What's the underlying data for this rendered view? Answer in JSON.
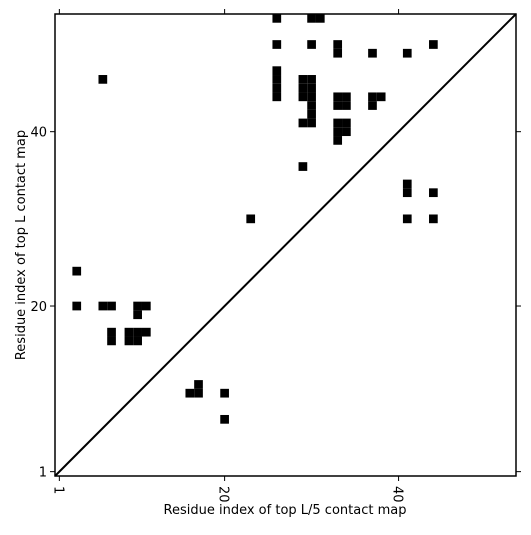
{
  "chart_data": {
    "type": "scatter",
    "xlabel": "Residue index of top L/5 contact map",
    "ylabel": "Residue index of top L contact map",
    "x": [
      3,
      3,
      6,
      7,
      7,
      7,
      9,
      10,
      11,
      9,
      10,
      10,
      11,
      10,
      16,
      17,
      17,
      20,
      20,
      6,
      23,
      26,
      26,
      26,
      26,
      26,
      26,
      29,
      30,
      29,
      30,
      29,
      30,
      30,
      30,
      29,
      30,
      29,
      30,
      31,
      30,
      33,
      33,
      33,
      34,
      33,
      34,
      33,
      34,
      33,
      34,
      33,
      37,
      37,
      38,
      37,
      41,
      41,
      41,
      41,
      44,
      44,
      44
    ],
    "values": [
      24,
      20,
      20,
      20,
      17,
      16,
      17,
      17,
      17,
      16,
      16,
      20,
      20,
      19,
      10,
      10,
      11,
      10,
      7,
      46,
      30,
      53,
      50,
      47,
      46,
      45,
      44,
      46,
      46,
      45,
      45,
      44,
      44,
      43,
      42,
      41,
      41,
      36,
      53,
      53,
      50,
      50,
      49,
      44,
      44,
      43,
      43,
      41,
      41,
      40,
      40,
      39,
      49,
      44,
      44,
      43,
      49,
      34,
      33,
      30,
      50,
      33,
      30
    ],
    "color": "#000000",
    "xlim": [
      0.5,
      53.5
    ],
    "ylim": [
      0.5,
      53.5
    ],
    "xticks": [
      1,
      20,
      40
    ],
    "yticks": [
      1,
      20,
      40
    ]
  }
}
